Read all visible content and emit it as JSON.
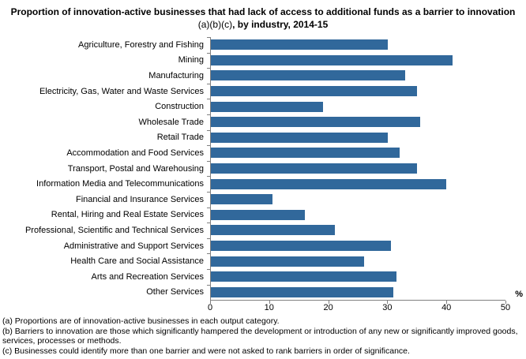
{
  "title": {
    "text_bold_1": "Proportion of innovation-active businesses  that had lack of access to additional funds as a barrier to innovation ",
    "text_regular": "(a)(b)(c)",
    "text_bold_2": ", by industry, 2014-15"
  },
  "chart_data": {
    "type": "bar",
    "orientation": "horizontal",
    "title": "Proportion of innovation-active businesses that had lack of access to additional funds as a barrier to innovation (a)(b)(c), by industry, 2014-15",
    "categories": [
      "Agriculture, Forestry and Fishing",
      "Mining",
      "Manufacturing",
      "Electricity, Gas, Water and Waste Services",
      "Construction",
      "Wholesale Trade",
      "Retail Trade",
      "Accommodation and Food Services",
      "Transport, Postal and Warehousing",
      "Information Media and Telecommunications",
      "Financial and Insurance Services",
      "Rental, Hiring and Real Estate Services",
      "Professional, Scientific and Technical Services",
      "Administrative and Support Services",
      "Health Care and Social Assistance",
      "Arts and Recreation Services",
      "Other Services"
    ],
    "values": [
      30,
      41,
      33,
      35,
      19,
      35.5,
      30,
      32,
      35,
      40,
      10.5,
      16,
      21,
      30.5,
      26,
      31.5,
      31
    ],
    "xlabel": "%",
    "ylabel": "",
    "xlim": [
      0,
      50
    ],
    "xticks": [
      0,
      10,
      20,
      30,
      40,
      50
    ],
    "grid": false,
    "legend": false,
    "bar_color": "#31689B",
    "axis_color": "#808080"
  },
  "footnotes": [
    "(a) Proportions are of innovation-active businesses in each output category.",
    "(b) Barriers to innovation are those which significantly hampered the development or introduction of any new or significantly improved goods, services, processes or methods.",
    "(c) Businesses could identify more than one barrier and were not asked to rank barriers in order of significance."
  ]
}
